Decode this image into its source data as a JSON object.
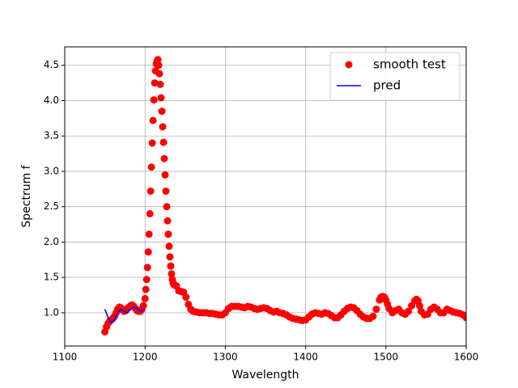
{
  "chart_data": {
    "type": "line",
    "xlabel": "Wavelength",
    "ylabel": "Spectrum f",
    "xlim": [
      1100,
      1600
    ],
    "xticks": [
      1100,
      1200,
      1300,
      1400,
      1500,
      1600
    ],
    "ylim": [
      0.53,
      4.76
    ],
    "yticks": [
      {
        "value": 1,
        "label": "1.0"
      },
      1.5,
      {
        "value": 2,
        "label": "2.0"
      },
      2.5,
      {
        "value": 3,
        "label": "3.0"
      },
      3.5,
      {
        "value": 4,
        "label": "4.0"
      },
      4.5
    ],
    "grid": true,
    "legend": "upper right",
    "series": [
      {
        "name": "smooth test",
        "color": "#ff0000",
        "style": "markers",
        "x": [
          1150,
          1152,
          1154,
          1156,
          1158,
          1160,
          1162,
          1164,
          1166,
          1168,
          1170,
          1172,
          1174,
          1176,
          1178,
          1180,
          1182,
          1184,
          1186,
          1188,
          1190,
          1192,
          1194,
          1196,
          1198,
          1200,
          1201,
          1202,
          1203,
          1204,
          1205,
          1206,
          1207,
          1208,
          1209,
          1210,
          1211,
          1212,
          1213,
          1214,
          1215,
          1216,
          1217,
          1218,
          1219,
          1220,
          1221,
          1222,
          1223,
          1224,
          1225,
          1226,
          1227,
          1228,
          1229,
          1230,
          1231,
          1232,
          1233,
          1234,
          1235,
          1236,
          1237,
          1239,
          1242,
          1245,
          1248,
          1251,
          1254,
          1257,
          1260,
          1264,
          1268,
          1272,
          1276,
          1280,
          1284,
          1288,
          1292,
          1296,
          1300,
          1304,
          1308,
          1312,
          1316,
          1320,
          1324,
          1328,
          1332,
          1336,
          1340,
          1344,
          1348,
          1352,
          1356,
          1360,
          1364,
          1368,
          1372,
          1376,
          1380,
          1384,
          1388,
          1392,
          1396,
          1400,
          1404,
          1408,
          1412,
          1416,
          1420,
          1424,
          1428,
          1432,
          1436,
          1440,
          1444,
          1448,
          1452,
          1456,
          1460,
          1464,
          1468,
          1472,
          1476,
          1480,
          1484,
          1488,
          1492,
          1494,
          1496,
          1498,
          1500,
          1502,
          1504,
          1508,
          1512,
          1516,
          1520,
          1524,
          1528,
          1532,
          1536,
          1538,
          1540,
          1542,
          1544,
          1548,
          1552,
          1556,
          1560,
          1564,
          1568,
          1572,
          1576,
          1580,
          1584,
          1588,
          1592,
          1596,
          1600
        ],
        "values": [
          0.73,
          0.8,
          0.85,
          0.88,
          0.9,
          0.92,
          0.95,
          1.0,
          1.05,
          1.08,
          1.07,
          1.04,
          1.02,
          1.03,
          1.06,
          1.08,
          1.1,
          1.11,
          1.09,
          1.06,
          1.03,
          1.02,
          1.02,
          1.05,
          1.1,
          1.2,
          1.33,
          1.47,
          1.64,
          1.86,
          2.11,
          2.4,
          2.72,
          3.06,
          3.4,
          3.72,
          4.01,
          4.25,
          4.42,
          4.52,
          4.56,
          4.58,
          4.5,
          4.38,
          4.23,
          4.04,
          3.85,
          3.63,
          3.41,
          3.18,
          2.95,
          2.72,
          2.5,
          2.3,
          2.11,
          1.94,
          1.79,
          1.66,
          1.55,
          1.47,
          1.42,
          1.4,
          1.39,
          1.38,
          1.31,
          1.3,
          1.29,
          1.22,
          1.12,
          1.05,
          1.02,
          1.01,
          1.0,
          1.0,
          1.0,
          0.99,
          0.99,
          0.98,
          0.97,
          0.97,
          1.0,
          1.06,
          1.09,
          1.09,
          1.09,
          1.08,
          1.07,
          1.09,
          1.08,
          1.06,
          1.05,
          1.06,
          1.07,
          1.06,
          1.03,
          1.01,
          1.02,
          1.0,
          0.99,
          0.97,
          0.94,
          0.92,
          0.91,
          0.9,
          0.89,
          0.9,
          0.94,
          0.98,
          1.0,
          0.99,
          0.98,
          1.0,
          0.99,
          0.96,
          0.93,
          0.93,
          0.97,
          1.02,
          1.06,
          1.08,
          1.07,
          1.03,
          0.98,
          0.94,
          0.92,
          0.92,
          0.95,
          1.05,
          1.18,
          1.22,
          1.23,
          1.22,
          1.18,
          1.12,
          1.06,
          1.0,
          1.03,
          1.05,
          1.0,
          0.98,
          1.02,
          1.1,
          1.17,
          1.19,
          1.17,
          1.1,
          1.02,
          0.97,
          0.98,
          1.05,
          1.08,
          1.05,
          1.0,
          1.0,
          1.05,
          1.03,
          1.01,
          1.0,
          0.99,
          0.97,
          0.93
        ]
      },
      {
        "name": "pred",
        "color": "#0000ff",
        "style": "line",
        "x": [
          1150,
          1155,
          1158,
          1162,
          1166,
          1170,
          1174,
          1178,
          1182,
          1186,
          1190,
          1194,
          1198,
          1200
        ],
        "values": [
          1.05,
          0.9,
          0.86,
          0.9,
          1.0,
          1.05,
          1.02,
          1.0,
          1.05,
          1.08,
          1.06,
          1.02,
          1.05,
          1.04
        ]
      }
    ]
  }
}
